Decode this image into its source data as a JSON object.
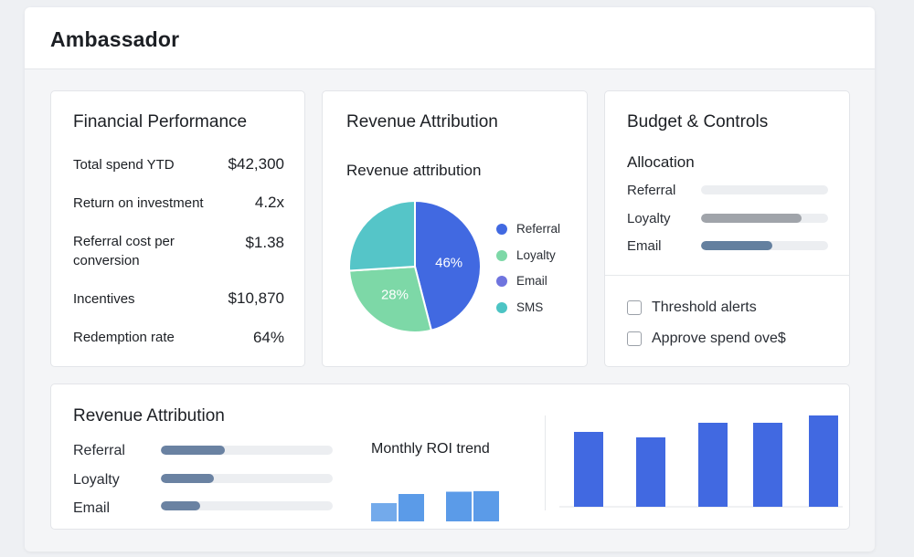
{
  "app": {
    "title": "Ambassador"
  },
  "financial": {
    "title": "Financial Performance",
    "metrics": [
      {
        "label": "Total spend YTD",
        "value": "$42,300"
      },
      {
        "label": "Return on investment",
        "value": "4.2x"
      },
      {
        "label": "Referral cost per conversion",
        "value": "$1.38"
      },
      {
        "label": "Incentives",
        "value": "$10,870"
      },
      {
        "label": "Redemption rate",
        "value": "64%"
      }
    ]
  },
  "revenue_pie": {
    "title": "Revenue Attribution",
    "subtitle": "Revenue attribution",
    "legend": [
      {
        "name": "Referral",
        "color": "#4169e1"
      },
      {
        "name": "Loyalty",
        "color": "#7dd8a7"
      },
      {
        "name": "Email",
        "color": "#6f74de"
      },
      {
        "name": "SMS",
        "color": "#4cc4c4"
      }
    ]
  },
  "chart_data": [
    {
      "type": "pie",
      "slices": [
        {
          "name": "Referral",
          "value": 46,
          "label": "46%",
          "color": "#4169e1"
        },
        {
          "name": "Loyalty",
          "value": 28,
          "label": "28%",
          "color": "#7dd8a7"
        },
        {
          "name": "SMS",
          "value": 26,
          "label": "",
          "color": "#55c5c8"
        }
      ]
    },
    {
      "type": "bar",
      "title": "Monthly ROI trend",
      "values": [
        3.2,
        4.8,
        5.2,
        5.3
      ],
      "gap_after_index": 1,
      "ylim": [
        0,
        10
      ]
    },
    {
      "type": "bar",
      "values": [
        82,
        76,
        92,
        92,
        100
      ],
      "ylim": [
        0,
        100
      ]
    }
  ],
  "budget": {
    "title": "Budget & Controls",
    "allocation_title": "Allocation",
    "allocation": [
      {
        "label": "Referral",
        "fraction": 0.0,
        "color": "#eceef1"
      },
      {
        "label": "Loyalty",
        "fraction": 0.79,
        "color": "#a0a4aa"
      },
      {
        "label": "Email",
        "fraction": 0.56,
        "color": "#64809f"
      }
    ],
    "controls": [
      {
        "label": "Threshold alerts",
        "checked": false
      },
      {
        "label": "Approve spend ove$",
        "checked": false
      }
    ]
  },
  "attribution_bottom": {
    "title": "Revenue Attribution",
    "bars": [
      {
        "label": "Referral",
        "fraction": 0.37,
        "color": "#6a82a2"
      },
      {
        "label": "Loyalty",
        "fraction": 0.31,
        "color": "#6a82a2"
      },
      {
        "label": "Email",
        "fraction": 0.23,
        "color": "#6a82a2"
      }
    ]
  }
}
